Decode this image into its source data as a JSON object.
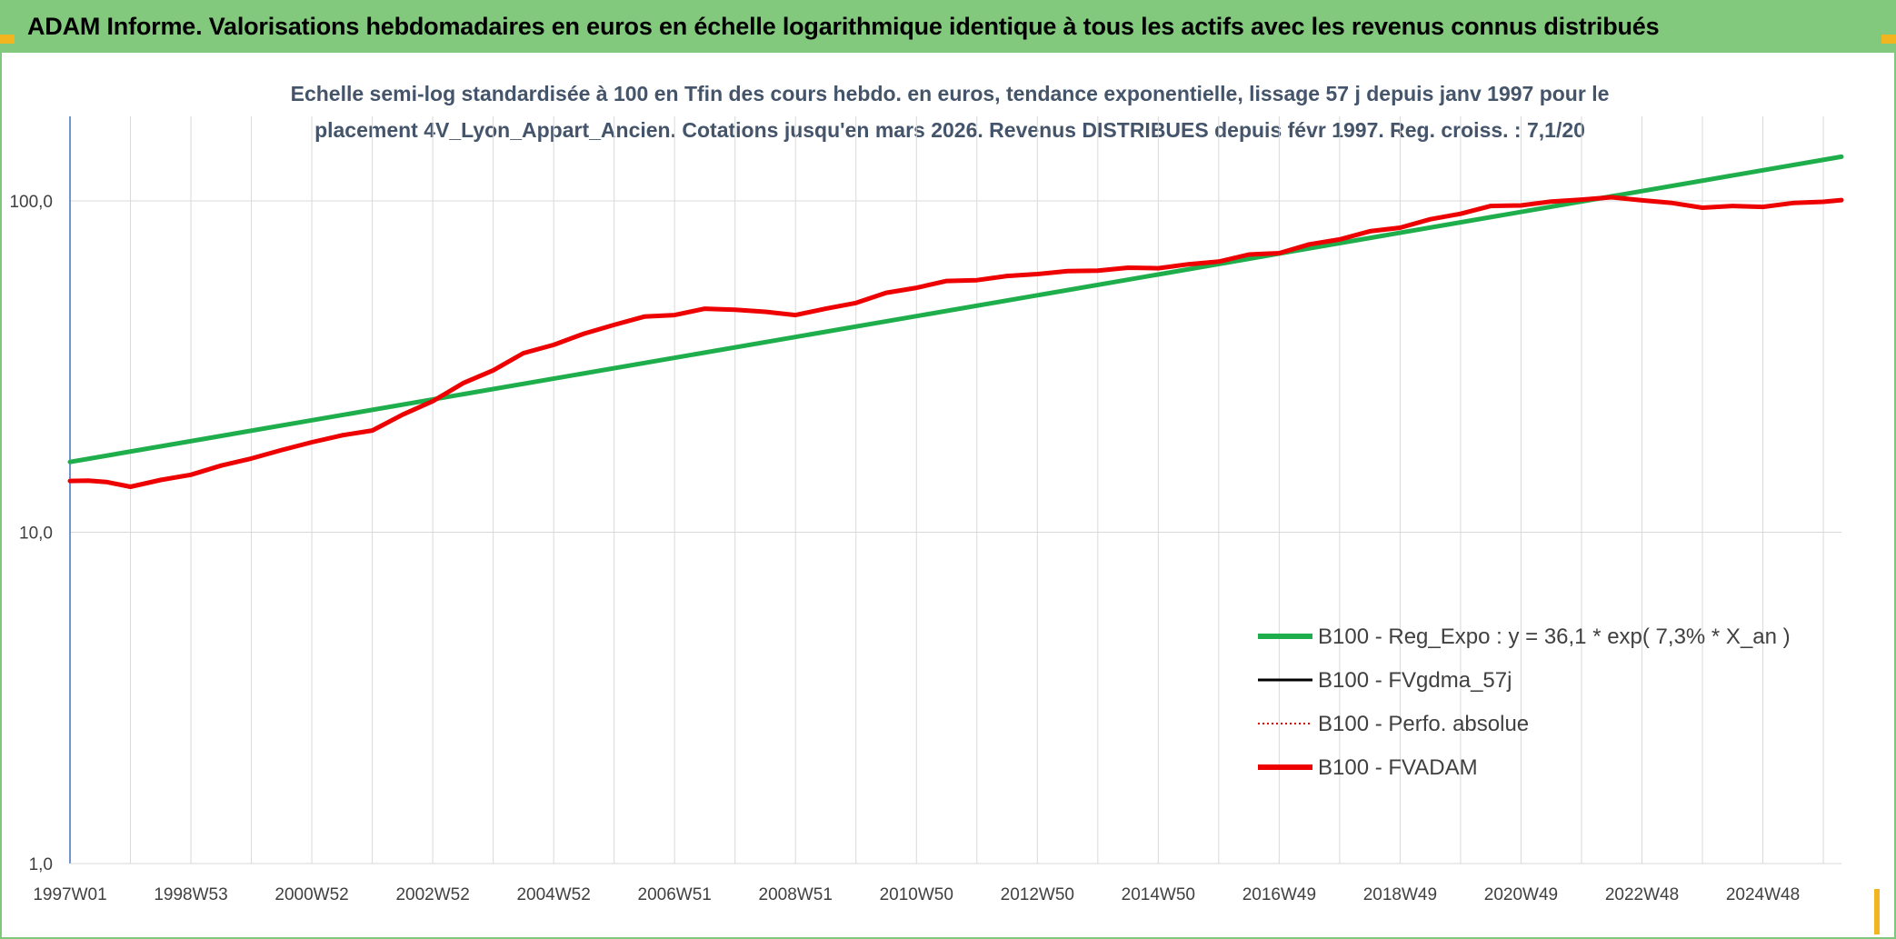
{
  "header": {
    "title": "ADAM Informe. Valorisations hebdomadaires en euros en échelle logarithmique identique à tous les actifs avec les revenus connus distribués"
  },
  "colors": {
    "header_bg": "#82c97d",
    "corner_accent": "#f2b51f",
    "trend_line": "#1fae4c",
    "fvgdma_line": "#000000",
    "perfo_line": "#e00000",
    "fvadam_line": "#ee0000",
    "grid": "#d9d9d9",
    "y_axis": "#4472c4"
  },
  "chart_data": {
    "type": "line",
    "title_lines": [
      "Echelle semi-log standardisée à 100 en Tfin des cours hebdo. en euros, tendance exponentielle, lissage 57 j depuis janv 1997 pour le",
      "placement 4V_Lyon_Appart_Ancien. Cotations jusqu'en mars 2026. Revenus DISTRIBUES depuis févr 1997. Reg. croiss. : 7,1/20"
    ],
    "y_scale": "log",
    "ylim": [
      1,
      180
    ],
    "y_ticks": [
      {
        "value": 1,
        "label": "1,0"
      },
      {
        "value": 10,
        "label": "10,0"
      },
      {
        "value": 100,
        "label": "100,0"
      }
    ],
    "xlim": [
      1997.0,
      2026.3
    ],
    "x_ticks": [
      {
        "value": 1997.0,
        "label": "1997W01"
      },
      {
        "value": 1999.0,
        "label": "1998W53"
      },
      {
        "value": 2001.0,
        "label": "2000W52"
      },
      {
        "value": 2003.0,
        "label": "2002W52"
      },
      {
        "value": 2005.0,
        "label": "2004W52"
      },
      {
        "value": 2007.0,
        "label": "2006W51"
      },
      {
        "value": 2009.0,
        "label": "2008W51"
      },
      {
        "value": 2011.0,
        "label": "2010W50"
      },
      {
        "value": 2013.0,
        "label": "2012W50"
      },
      {
        "value": 2015.0,
        "label": "2014W50"
      },
      {
        "value": 2017.0,
        "label": "2016W49"
      },
      {
        "value": 2019.0,
        "label": "2018W49"
      },
      {
        "value": 2021.0,
        "label": "2020W49"
      },
      {
        "value": 2023.0,
        "label": "2022W48"
      },
      {
        "value": 2025.0,
        "label": "2024W48"
      }
    ],
    "gridlines": {
      "vertical": true,
      "horizontal": true
    },
    "legend_position": "bottom-right",
    "series": [
      {
        "key": "reg_expo",
        "name": "B100 - Reg_Expo : y = 36,1 * exp( 7,3% *  X_an )",
        "style": "solid-thick",
        "color": "#1fae4c",
        "x": [
          1997.0,
          2026.3
        ],
        "y": [
          16.3,
          136
        ]
      },
      {
        "key": "fvgdma",
        "name": "B100 - FVgdma_57j",
        "style": "solid-thin",
        "color": "#000000",
        "x": [],
        "y": []
      },
      {
        "key": "perfo",
        "name": "B100 - Perfo. absolue",
        "style": "dotted",
        "color": "#e00000",
        "x": [],
        "y": []
      },
      {
        "key": "fvadam",
        "name": "B100 - FVADAM",
        "style": "solid-thick",
        "color": "#ee0000",
        "x": [
          1997.0,
          1997.3,
          1997.6,
          1998.0,
          1998.5,
          1999.0,
          1999.5,
          2000.0,
          2000.5,
          2001.0,
          2001.5,
          2002.0,
          2002.5,
          2003.0,
          2003.5,
          2004.0,
          2004.5,
          2005.0,
          2005.5,
          2006.0,
          2006.5,
          2007.0,
          2007.5,
          2008.0,
          2008.5,
          2009.0,
          2009.5,
          2010.0,
          2010.5,
          2011.0,
          2011.5,
          2012.0,
          2012.5,
          2013.0,
          2013.5,
          2014.0,
          2014.5,
          2015.0,
          2015.5,
          2016.0,
          2016.5,
          2017.0,
          2017.5,
          2018.0,
          2018.5,
          2019.0,
          2019.5,
          2020.0,
          2020.5,
          2021.0,
          2021.5,
          2022.0,
          2022.5,
          2023.0,
          2023.5,
          2024.0,
          2024.5,
          2025.0,
          2025.5,
          2026.0,
          2026.3
        ],
        "y": [
          14.2,
          14.4,
          14.1,
          13.8,
          14.3,
          15.0,
          15.8,
          16.8,
          17.6,
          18.8,
          19.5,
          20.4,
          22.5,
          25.0,
          28.0,
          31.0,
          34.5,
          37.0,
          39.5,
          42.5,
          44.5,
          45.5,
          47.0,
          47.2,
          46.0,
          45.5,
          47.0,
          49.5,
          52.5,
          55.0,
          57.0,
          58.0,
          59.0,
          60.5,
          61.0,
          62.0,
          62.5,
          63.0,
          64.0,
          66.0,
          68.5,
          70.0,
          73.5,
          77.0,
          80.5,
          83.5,
          87.5,
          92.0,
          96.0,
          97.5,
          99.0,
          101.5,
          102.0,
          101.0,
          98.0,
          96.0,
          96.0,
          96.5,
          98.0,
          100.0,
          100.0
        ]
      }
    ]
  }
}
